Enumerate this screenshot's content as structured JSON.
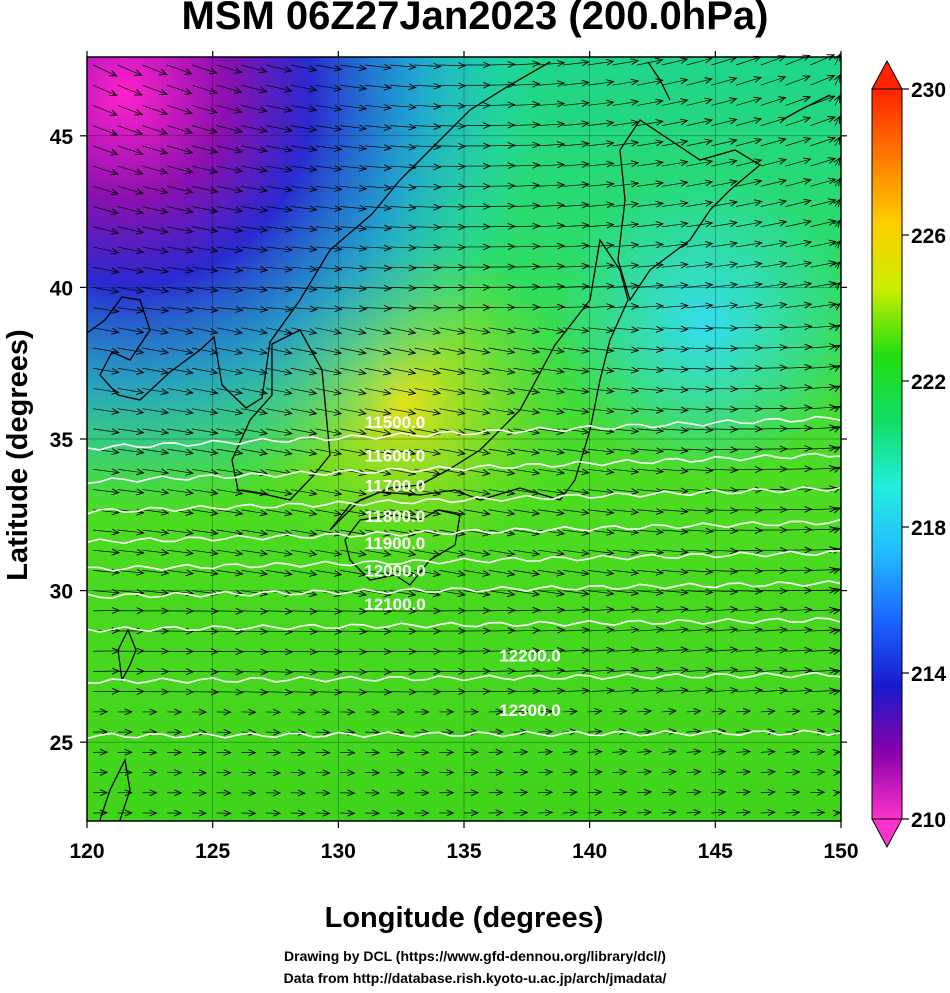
{
  "title": "MSM 06Z27Jan2023 (200.0hPa)",
  "map": {
    "xlabel": "Longitude (degrees)",
    "ylabel": "Latitude  (degrees)",
    "lon_range": [
      120,
      150
    ],
    "lat_range": [
      22.4,
      47.6
    ],
    "lon_ticks": [
      "120",
      "125",
      "130",
      "135",
      "140",
      "145",
      "150"
    ],
    "lat_ticks": [
      "25",
      "30",
      "35",
      "40",
      "45"
    ],
    "field": "temperature (shaded)",
    "vectors": "wind",
    "coastline_color": "#000000"
  },
  "colorbar": {
    "min": 210,
    "max": 230,
    "ticks": [
      "210",
      "214",
      "218",
      "222",
      "226",
      "230"
    ],
    "colors": [
      "#ff33cc",
      "#8800aa",
      "#1a1acc",
      "#1a66ff",
      "#22bbff",
      "#22eedd",
      "#11dd66",
      "#22dd11",
      "#ccee00",
      "#ffcc00",
      "#ff7700",
      "#ff2200"
    ]
  },
  "contours": [
    {
      "label": "11500.0",
      "lat": 35.3
    },
    {
      "label": "11600.0",
      "lat": 34.2
    },
    {
      "label": "11700.0",
      "lat": 33.2
    },
    {
      "label": "11800.0",
      "lat": 32.2
    },
    {
      "label": "11900.0",
      "lat": 31.3
    },
    {
      "label": "12000.0",
      "lat": 30.4
    },
    {
      "label": "12100.0",
      "lat": 29.3
    },
    {
      "label": "12200.0",
      "lat": 27.6
    },
    {
      "label": "12300.0",
      "lat": 25.8
    }
  ],
  "credits": {
    "line1": "Drawing by DCL (https://www.gfd-dennou.org/library/dcl/)",
    "line2": "Data from http://database.rish.kyoto-u.ac.jp/arch/jmadata/"
  }
}
